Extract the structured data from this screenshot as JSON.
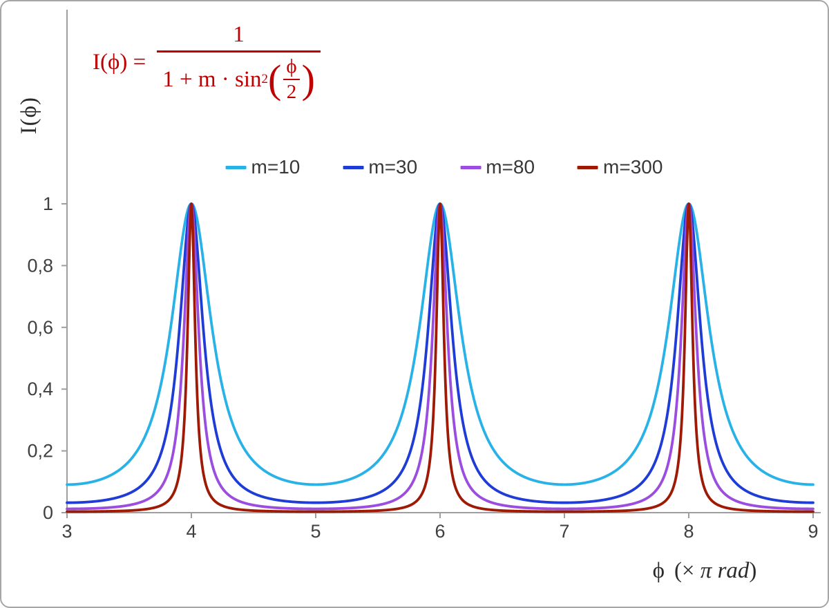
{
  "chart": {
    "frame_color": "#a6a6a6",
    "axis_color": "#9e9e9e",
    "tick_label_color": "#404040",
    "background": "#ffffff"
  },
  "formula": {
    "color": "#c00000",
    "lhs": "I(ϕ) =",
    "numerator": "1",
    "den_prefix": "1 + m · sin",
    "den_sup": "2",
    "paren_open": "(",
    "inner_num": "ϕ",
    "inner_den": "2",
    "paren_close": ")"
  },
  "chart_data": {
    "type": "line",
    "title": "",
    "xlabel": "ϕ (× π rad)",
    "xlabel_parts": {
      "phi": "ϕ",
      "open": "(× ",
      "italic": "π rad",
      "close": ")"
    },
    "ylabel": "I(ϕ)",
    "xlim": [
      3,
      9
    ],
    "ylim": [
      0,
      1
    ],
    "grid": false,
    "legend_position": "top-center",
    "function": "I(x) = 1 / (1 + m · sin²(π·x/2)) where x = ϕ in units of π rad",
    "samples_per_unit": 300,
    "x_ticks": [
      {
        "v": 3,
        "label": "3"
      },
      {
        "v": 4,
        "label": "4"
      },
      {
        "v": 5,
        "label": "5"
      },
      {
        "v": 6,
        "label": "6"
      },
      {
        "v": 7,
        "label": "7"
      },
      {
        "v": 8,
        "label": "8"
      },
      {
        "v": 9,
        "label": "9"
      }
    ],
    "y_ticks": [
      {
        "v": 0,
        "label": "0"
      },
      {
        "v": 0.2,
        "label": "0,2"
      },
      {
        "v": 0.4,
        "label": "0,4"
      },
      {
        "v": 0.6,
        "label": "0,6"
      },
      {
        "v": 0.8,
        "label": "0,8"
      },
      {
        "v": 1,
        "label": "1"
      }
    ],
    "series": [
      {
        "name": "m=10",
        "m": 10,
        "color": "#29b2e8"
      },
      {
        "name": "m=30",
        "m": 30,
        "color": "#1f3cd6"
      },
      {
        "name": "m=80",
        "m": 80,
        "color": "#9b4de0"
      },
      {
        "name": "m=300",
        "m": 300,
        "color": "#9e1a05"
      }
    ],
    "peaks_x": [
      4,
      6,
      8
    ],
    "peak_value": 1,
    "minima_x": [
      3,
      5,
      7,
      9
    ]
  }
}
